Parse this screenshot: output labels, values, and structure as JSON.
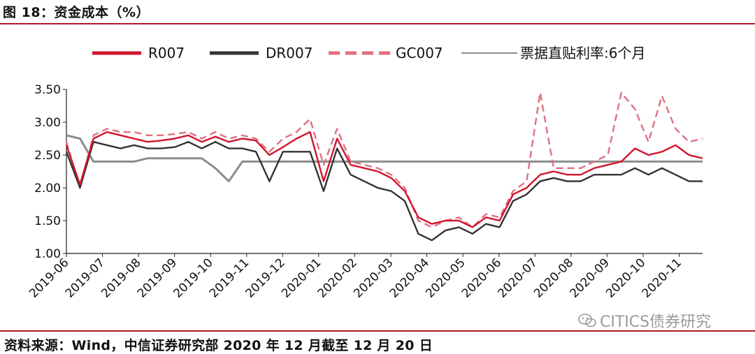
{
  "header": {
    "title": "图 18：资金成本（%）"
  },
  "footer": {
    "source": "资料来源：Wind，中信证券研究部  2020 年 12 月截至 12 月 20 日"
  },
  "watermark": {
    "icon": "wechat-icon",
    "text": "CITICS债券研究"
  },
  "chart_data": {
    "type": "line",
    "title": "资金成本（%）",
    "xlabel": "",
    "ylabel": "",
    "ylim": [
      1.0,
      3.5
    ],
    "yticks": [
      "3.50",
      "3.00",
      "2.50",
      "2.00",
      "1.50",
      "1.00"
    ],
    "x_ticks": [
      "2019-06",
      "2019-07",
      "2019-08",
      "2019-09",
      "2019-10",
      "2019-11",
      "2019-12",
      "2020-01",
      "2020-02",
      "2020-03",
      "2020-04",
      "2020-05",
      "2020-06",
      "2020-07",
      "2020-08",
      "2020-09",
      "2020-10",
      "2020-11"
    ],
    "grid": false,
    "legend_position": "top",
    "series": [
      {
        "name": "R007",
        "color": "#d0152d",
        "style": "solid",
        "values": [
          2.65,
          2.05,
          2.75,
          2.85,
          2.8,
          2.75,
          2.7,
          2.72,
          2.75,
          2.8,
          2.7,
          2.78,
          2.7,
          2.75,
          2.72,
          2.5,
          2.62,
          2.75,
          2.85,
          2.1,
          2.75,
          2.35,
          2.3,
          2.25,
          2.15,
          1.95,
          1.55,
          1.45,
          1.5,
          1.5,
          1.4,
          1.55,
          1.5,
          1.9,
          2.0,
          2.2,
          2.25,
          2.2,
          2.2,
          2.3,
          2.35,
          2.4,
          2.6,
          2.5,
          2.55,
          2.65,
          2.5,
          2.45
        ]
      },
      {
        "name": "DR007",
        "color": "#333333",
        "style": "solid",
        "values": [
          2.55,
          2.0,
          2.7,
          2.65,
          2.6,
          2.65,
          2.6,
          2.6,
          2.62,
          2.7,
          2.6,
          2.7,
          2.6,
          2.6,
          2.55,
          2.1,
          2.55,
          2.55,
          2.55,
          1.95,
          2.6,
          2.2,
          2.1,
          2.0,
          1.95,
          1.8,
          1.3,
          1.2,
          1.35,
          1.4,
          1.3,
          1.45,
          1.4,
          1.8,
          1.9,
          2.1,
          2.15,
          2.1,
          2.1,
          2.2,
          2.2,
          2.2,
          2.3,
          2.2,
          2.3,
          2.2,
          2.1,
          2.1
        ]
      },
      {
        "name": "GC007",
        "color": "#e07080",
        "style": "dashed",
        "values": [
          2.7,
          2.0,
          2.8,
          2.9,
          2.85,
          2.85,
          2.8,
          2.8,
          2.82,
          2.85,
          2.75,
          2.85,
          2.75,
          2.8,
          2.75,
          2.55,
          2.75,
          2.85,
          3.05,
          2.35,
          2.9,
          2.4,
          2.35,
          2.3,
          2.2,
          2.0,
          1.5,
          1.4,
          1.5,
          1.55,
          1.4,
          1.6,
          1.55,
          1.95,
          2.1,
          3.45,
          2.3,
          2.3,
          2.3,
          2.4,
          2.5,
          3.45,
          3.2,
          2.7,
          3.4,
          2.9,
          2.7,
          2.75
        ]
      },
      {
        "name": "票据直贴利率:6个月",
        "color": "#8c8c8c",
        "style": "solid",
        "values": [
          2.8,
          2.75,
          2.4,
          2.4,
          2.4,
          2.4,
          2.45,
          2.45,
          2.45,
          2.45,
          2.45,
          2.3,
          2.1,
          2.4,
          2.4,
          2.4,
          2.4,
          2.4,
          2.4,
          2.4,
          2.4,
          2.4,
          2.4,
          2.4,
          2.4,
          2.4,
          2.4,
          2.4,
          2.4,
          2.4,
          2.4,
          2.4,
          2.4,
          2.4,
          2.4,
          2.4,
          2.4,
          2.4,
          2.4,
          2.4,
          2.4,
          2.4,
          2.4,
          2.4,
          2.4,
          2.4,
          2.4,
          2.4
        ]
      }
    ]
  }
}
